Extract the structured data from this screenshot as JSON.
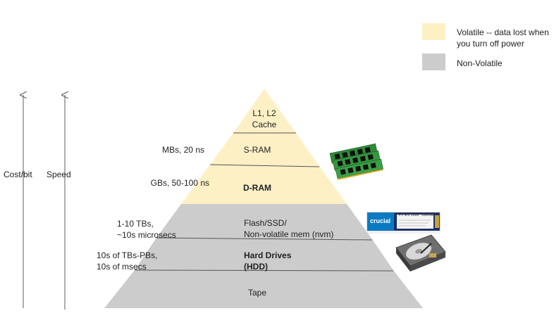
{
  "legend": {
    "volatile": {
      "label": "Volatile -- data lost when you turn off power",
      "color": "#fdf0c5"
    },
    "nonvolatile": {
      "label": "Non-Volatile",
      "color": "#cccccc"
    }
  },
  "axes": {
    "cost": "Cost/bit",
    "speed": "Speed"
  },
  "levels": {
    "cache": {
      "name": "L1, L2\nCache"
    },
    "sram": {
      "name": "S-RAM",
      "spec": "MBs, 20 ns"
    },
    "dram": {
      "name": "D-RAM",
      "spec": "GBs, 50-100 ns"
    },
    "flash": {
      "name": "Flash/SSD/\nNon-volatile mem (nvm)",
      "spec": "1-10 TBs,\n~10s microsecs"
    },
    "hdd": {
      "name": "Hard Drives\n(HDD)",
      "spec": "10s of TBs-PBs,\n10s of msecs"
    },
    "tape": {
      "name": "Tape"
    }
  },
  "ssd_image": {
    "brand": "crucial",
    "model": "P1 M.2 2280",
    "capacity": "1000GB"
  },
  "icons": {
    "ram": "ram-sticks-icon",
    "ssd": "ssd-drive-icon",
    "hdd": "hard-drive-icon"
  }
}
